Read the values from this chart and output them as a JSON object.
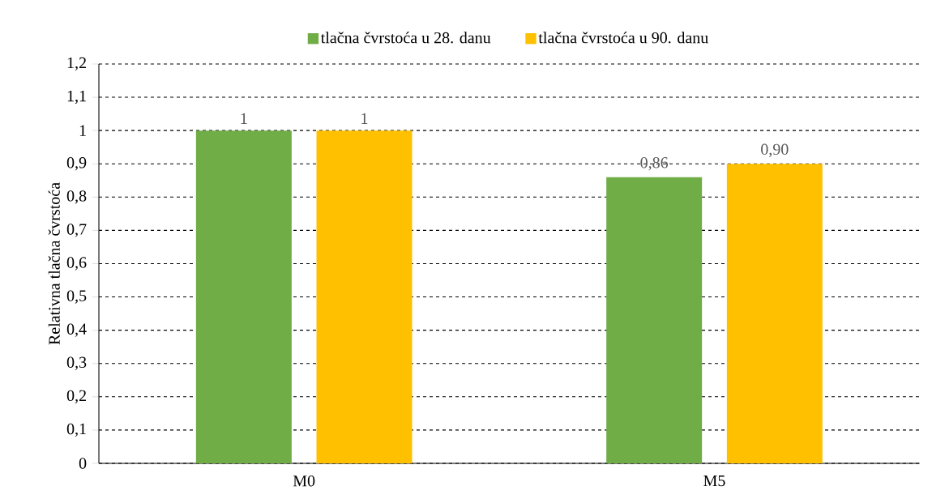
{
  "chart_data": {
    "type": "bar",
    "ylabel": "Relativna tlačna čvrstoća",
    "categories": [
      "M0",
      "M5"
    ],
    "series": [
      {
        "name": "tlačna čvrstoća u 28. danu",
        "color": "#70ad47",
        "values": [
          1,
          0.86
        ],
        "value_labels": [
          "1",
          "0,86"
        ]
      },
      {
        "name": "tlačna čvrstoća u 90. danu",
        "color": "#ffc000",
        "values": [
          1,
          0.9
        ],
        "value_labels": [
          "1",
          "0,90"
        ]
      }
    ],
    "ylim": [
      0,
      1.2
    ],
    "yticks": [
      0,
      {
        "value": 0.1,
        "label": "0,1"
      },
      {
        "value": 0.2,
        "label": "0,2"
      },
      {
        "value": 0.3,
        "label": "0,3"
      },
      {
        "value": 0.4,
        "label": "0,4"
      },
      {
        "value": 0.5,
        "label": "0,5"
      },
      {
        "value": 0.6,
        "label": "0,6"
      },
      {
        "value": 0.7,
        "label": "0,7"
      },
      {
        "value": 0.8,
        "label": "0,8"
      },
      {
        "value": 0.9,
        "label": "0,9"
      },
      1,
      {
        "value": 1.1,
        "label": "1,1"
      },
      {
        "value": 1.2,
        "label": "1,2"
      }
    ],
    "grid": "y",
    "legend": "top"
  }
}
